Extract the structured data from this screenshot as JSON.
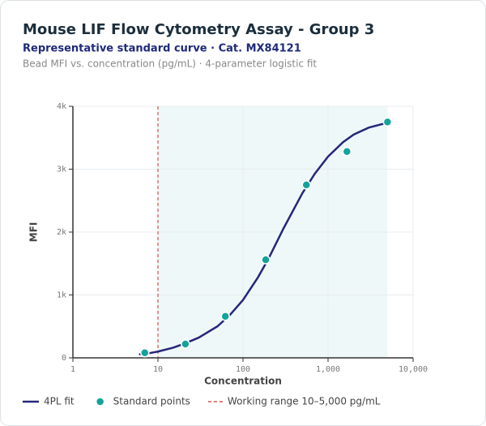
{
  "chart_data": {
    "type": "line",
    "title": "Mouse LIF Flow Cytometry Assay - Group 3",
    "subtitle": "Representative standard curve · Cat. MX84121",
    "caption": "Bead MFI vs. concentration (pg/mL) · 4-parameter logistic fit",
    "x_label": "Concentration",
    "y_label": "MFI",
    "x_scale": "log",
    "grid": true,
    "xlim": [
      1,
      10000
    ],
    "xticks": [
      1,
      10,
      100,
      {
        "value": 1000,
        "label": "1,000"
      },
      {
        "value": 10000,
        "label": "10,000"
      }
    ],
    "ylim": [
      0,
      4000
    ],
    "yticks": [
      0,
      {
        "value": 1000,
        "label": "1k"
      },
      {
        "value": 2000,
        "label": "2k"
      },
      {
        "value": 3000,
        "label": "3k"
      },
      {
        "value": 4000,
        "label": "4k"
      }
    ],
    "working_range": {
      "name": "Working range 10–5,000 pg/mL",
      "color": "#d9534f",
      "fill": "#eef8f8",
      "x": [
        10,
        5000
      ]
    },
    "series": [
      {
        "name": "4PL fit",
        "type": "line",
        "color": "#25287a",
        "x": [
          6,
          8,
          10,
          15,
          20,
          30,
          50,
          70,
          100,
          150,
          200,
          300,
          500,
          700,
          1000,
          1500,
          2000,
          3000,
          5000
        ],
        "values": [
          55,
          75,
          100,
          160,
          220,
          320,
          500,
          680,
          920,
          1280,
          1580,
          2060,
          2620,
          2930,
          3200,
          3430,
          3550,
          3660,
          3740
        ]
      },
      {
        "name": "Standard points",
        "type": "scatter",
        "color": "#14a39a",
        "x": [
          7,
          21,
          62,
          185,
          556,
          1667,
          5000
        ],
        "values": [
          80,
          220,
          660,
          1560,
          2750,
          3280,
          3750
        ]
      }
    ]
  }
}
